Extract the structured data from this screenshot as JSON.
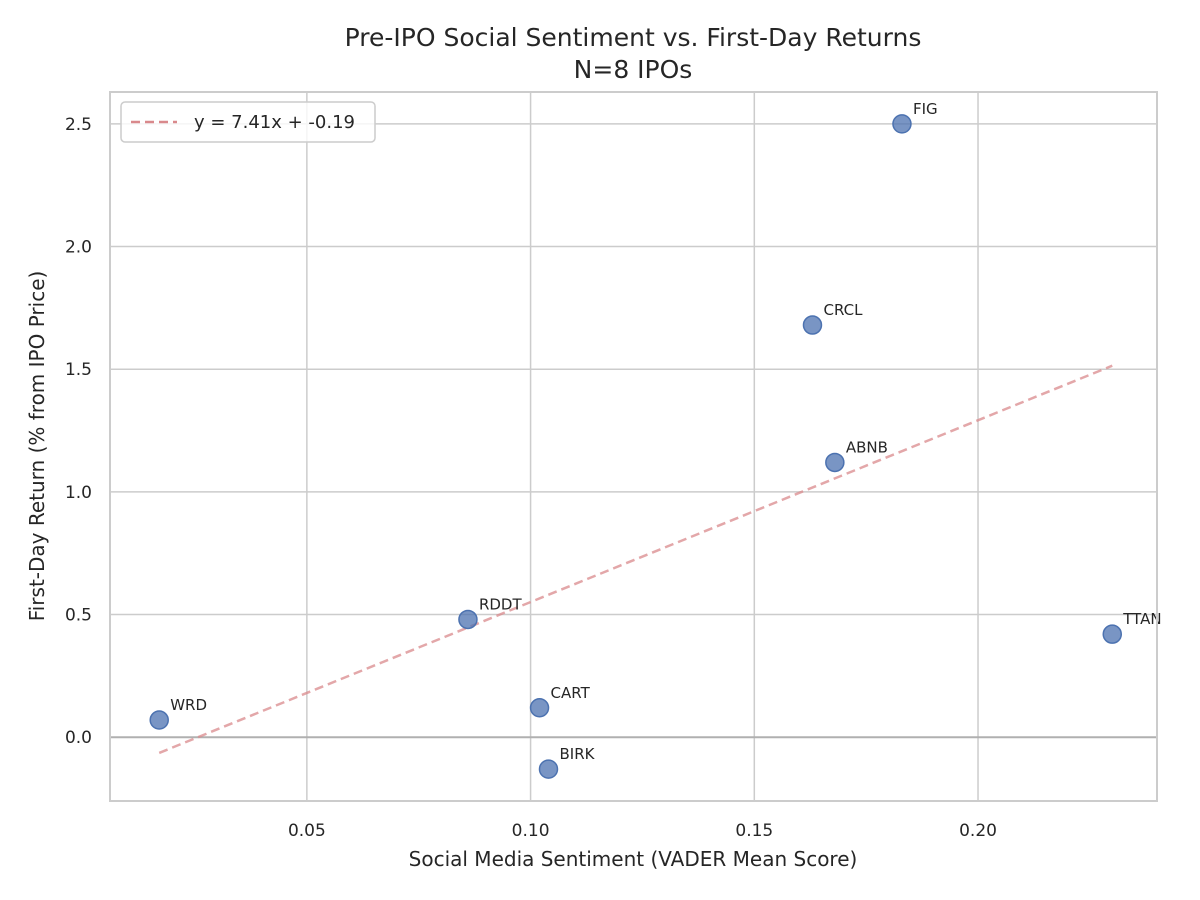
{
  "chart_data": {
    "type": "scatter",
    "title": "Pre-IPO Social Sentiment vs. First-Day Returns",
    "subtitle": "N=8 IPOs",
    "xlabel": "Social Media Sentiment (VADER Mean Score)",
    "ylabel": "First-Day Return (% from IPO Price)",
    "xlim": [
      0.006,
      0.24
    ],
    "ylim": [
      -0.26,
      2.63
    ],
    "xticks": [
      0.05,
      0.1,
      0.15,
      0.2
    ],
    "xtick_labels": [
      "0.05",
      "0.10",
      "0.15",
      "0.20"
    ],
    "yticks": [
      0.0,
      0.5,
      1.0,
      1.5,
      2.0,
      2.5
    ],
    "ytick_labels": [
      "0.0",
      "0.5",
      "1.0",
      "1.5",
      "2.0",
      "2.5"
    ],
    "grid": true,
    "points": [
      {
        "label": "FIG",
        "x": 0.183,
        "y": 2.5
      },
      {
        "label": "CRCL",
        "x": 0.163,
        "y": 1.68
      },
      {
        "label": "ABNB",
        "x": 0.168,
        "y": 1.12
      },
      {
        "label": "RDDT",
        "x": 0.086,
        "y": 0.48
      },
      {
        "label": "TTAN",
        "x": 0.23,
        "y": 0.42
      },
      {
        "label": "CART",
        "x": 0.102,
        "y": 0.12
      },
      {
        "label": "WRD",
        "x": 0.017,
        "y": 0.07
      },
      {
        "label": "BIRK",
        "x": 0.104,
        "y": -0.13
      }
    ],
    "trendline": {
      "label": "y = 7.41x + -0.19",
      "slope": 7.41,
      "intercept": -0.19,
      "x_start": 0.017,
      "x_end": 0.23
    },
    "legend_position": "top-left",
    "colors": {
      "points": "#4c72b0",
      "trendline": "#dd8452",
      "trendline_actual": "#d9898c",
      "grid": "#cccccc",
      "zero_line": "#b0b0b0",
      "axis": "#cccccc",
      "text": "#262626"
    }
  }
}
